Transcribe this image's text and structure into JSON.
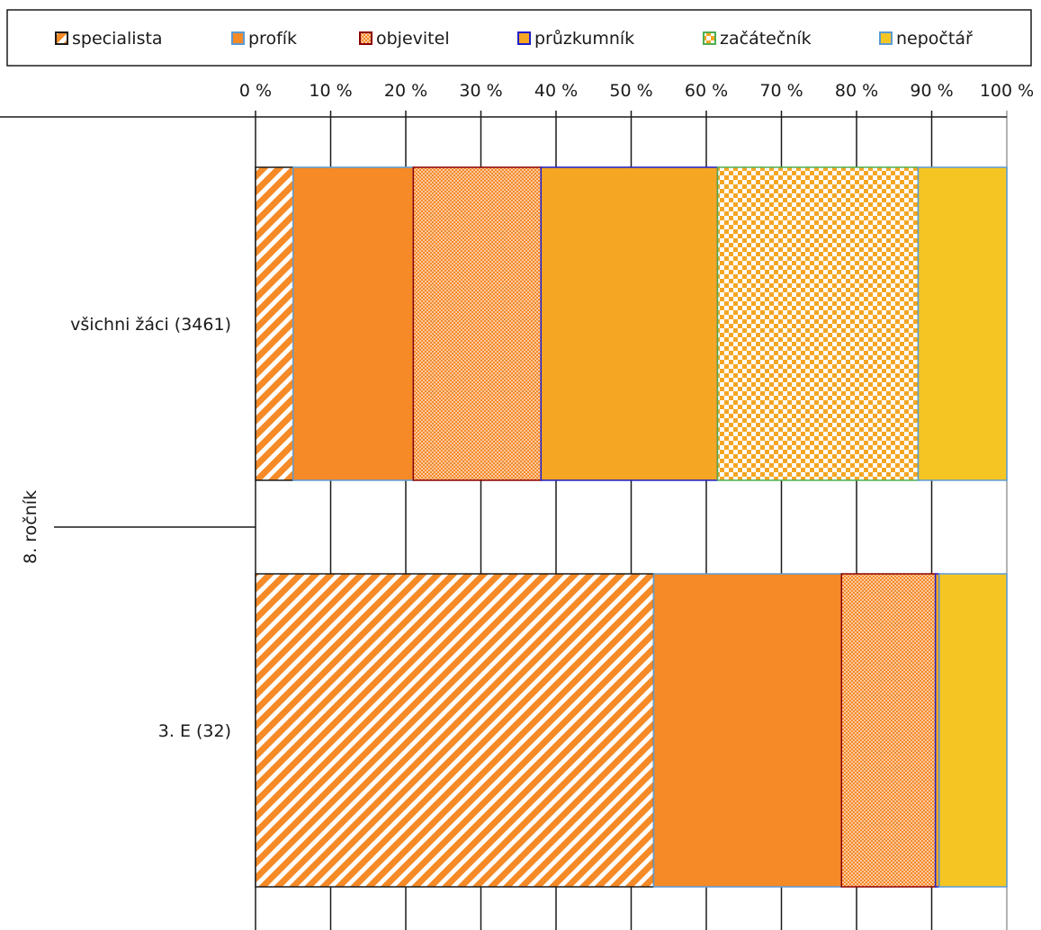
{
  "chart_data": {
    "type": "bar",
    "orientation": "horizontal",
    "stacked": true,
    "percent_stacked": true,
    "title": "",
    "group_label": "8. ročník",
    "categories": [
      "všichni žáci (3461)",
      "3. E (32)"
    ],
    "series": [
      {
        "name": "specialista",
        "values": [
          5,
          53
        ],
        "color": "#F58A27",
        "pattern": "diagonal-stripes",
        "border": "#1a1a1a"
      },
      {
        "name": "profík",
        "values": [
          16,
          25
        ],
        "color": "#F58A27",
        "pattern": "solid",
        "border": "#5B9BD5"
      },
      {
        "name": "objevitel",
        "values": [
          17,
          12.5
        ],
        "color": "#F58A27",
        "pattern": "dense-dots",
        "border": "#8B0000"
      },
      {
        "name": "průzkumník",
        "values": [
          23.5,
          0.5
        ],
        "color": "#F5A623",
        "pattern": "solid",
        "border": "#1F1FCC"
      },
      {
        "name": "začátečník",
        "values": [
          26.7,
          0
        ],
        "color": "#F5A623",
        "pattern": "checker",
        "border": "#4CAF50"
      },
      {
        "name": "nepočtář",
        "values": [
          11.8,
          9
        ],
        "color": "#F5C623",
        "pattern": "solid",
        "border": "#5B9BD5"
      }
    ],
    "xlim": [
      0,
      100
    ],
    "ticks": [
      "0 %",
      "10 %",
      "20 %",
      "30 %",
      "40 %",
      "50 %",
      "60 %",
      "70 %",
      "80 %",
      "90 %",
      "100 %"
    ],
    "axis_position": "top",
    "grid": true,
    "legend": "top"
  }
}
